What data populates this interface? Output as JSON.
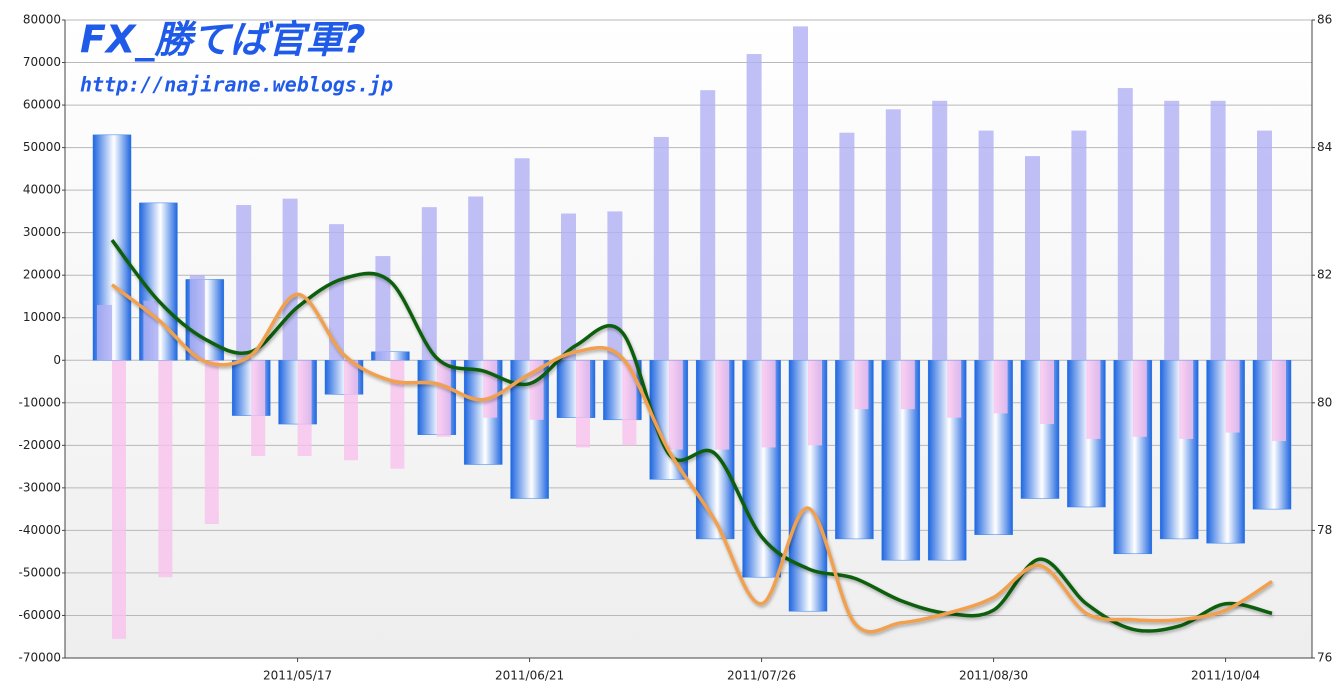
{
  "chart_data": {
    "type": "bar",
    "title": "FX_勝てば官軍?",
    "subtitle": "http://najirane.weblogs.jp",
    "categories": [
      null,
      null,
      null,
      null,
      "2011/05/17",
      null,
      null,
      null,
      null,
      "2011/06/21",
      null,
      null,
      null,
      null,
      "2011/07/26",
      null,
      null,
      null,
      null,
      "2011/08/30",
      null,
      null,
      null,
      null,
      "2011/10/04",
      null
    ],
    "series": [
      {
        "type": "bar",
        "style": "gradient",
        "color": "#2f7fe8",
        "values": [
          53000,
          37000,
          19000,
          -13000,
          -15000,
          -8000,
          2000,
          -17500,
          -24500,
          -32500,
          -13500,
          -14000,
          -28000,
          -42000,
          -51000,
          -59000,
          -42000,
          -47000,
          -47000,
          -41000,
          -32500,
          -34500,
          -45500,
          -42000,
          -43000,
          -35000
        ]
      },
      {
        "type": "bar",
        "style": "left",
        "color": "#b0b0f4",
        "values": [
          13000,
          14000,
          20000,
          36500,
          38000,
          32000,
          24500,
          36000,
          38500,
          47500,
          34500,
          35000,
          52500,
          63500,
          72000,
          78500,
          53500,
          59000,
          61000,
          54000,
          48000,
          54000,
          64000,
          61000,
          61000,
          54000
        ]
      },
      {
        "type": "bar",
        "style": "right",
        "color": "#f8c2ee",
        "values": [
          -65500,
          -51000,
          -38500,
          -22500,
          -22500,
          -23500,
          -25500,
          -18000,
          -13500,
          -14000,
          -20500,
          -20000,
          -21000,
          -21000,
          -20500,
          -20000,
          -11500,
          -11500,
          -13500,
          -12500,
          -15000,
          -18500,
          -18000,
          -18500,
          -17000,
          -19000
        ]
      },
      {
        "type": "line",
        "axis": "y2",
        "color": "#0b5e0b",
        "values": [
          82.55,
          81.6,
          81.0,
          80.8,
          81.5,
          81.95,
          81.9,
          80.7,
          80.5,
          80.3,
          80.9,
          81.1,
          79.2,
          79.2,
          77.9,
          77.4,
          77.25,
          76.9,
          76.7,
          76.75,
          77.55,
          76.85,
          76.45,
          76.5,
          76.85,
          76.7
        ]
      },
      {
        "type": "line",
        "axis": "y2",
        "color": "#f0a050",
        "values": [
          81.85,
          81.3,
          80.65,
          80.75,
          81.7,
          80.75,
          80.35,
          80.3,
          80.05,
          80.45,
          80.8,
          80.7,
          79.25,
          78.15,
          76.85,
          78.35,
          76.55,
          76.55,
          76.7,
          76.95,
          77.45,
          76.7,
          76.6,
          76.6,
          76.75,
          77.2
        ]
      }
    ],
    "ylim": [
      -70000,
      80000
    ],
    "yticks": [
      -70000,
      -60000,
      -50000,
      -40000,
      -30000,
      -20000,
      -10000,
      0,
      10000,
      20000,
      30000,
      40000,
      50000,
      60000,
      70000,
      80000
    ],
    "y2lim": [
      76,
      86
    ],
    "y2ticks": [
      76,
      78,
      80,
      82,
      84,
      86
    ],
    "grid": true
  }
}
